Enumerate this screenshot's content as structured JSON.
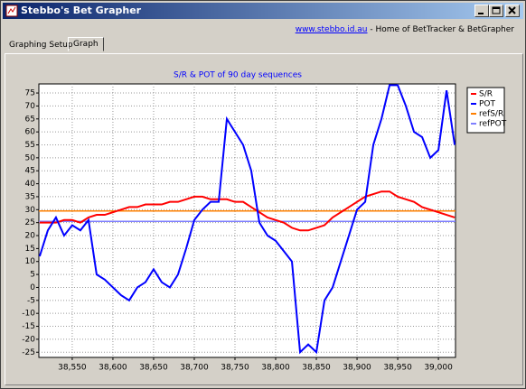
{
  "window": {
    "title": "Stebbo's Bet Grapher",
    "link": "www.stebbo.id.au",
    "link_suffix": " - Home of BetTracker & BetGrapher",
    "tabs": [
      "Graphing Setup",
      "Graph"
    ]
  },
  "chart_data": {
    "type": "line",
    "title": "S/R & POT of 90 day sequences",
    "x": [
      38510,
      38520,
      38530,
      38540,
      38550,
      38560,
      38570,
      38580,
      38590,
      38600,
      38610,
      38620,
      38630,
      38640,
      38650,
      38660,
      38670,
      38680,
      38690,
      38700,
      38710,
      38720,
      38730,
      38740,
      38750,
      38760,
      38770,
      38780,
      38790,
      38800,
      38810,
      38820,
      38830,
      38840,
      38850,
      38860,
      38870,
      38880,
      38890,
      38900,
      38910,
      38920,
      38930,
      38940,
      38950,
      38960,
      38970,
      38980,
      38990,
      39000,
      39010,
      39020
    ],
    "series": [
      {
        "name": "S/R",
        "color": "#ff0000",
        "values": [
          25,
          25,
          25,
          26,
          26,
          25,
          27,
          28,
          28,
          29,
          30,
          31,
          31,
          32,
          32,
          32,
          33,
          33,
          34,
          35,
          35,
          34,
          34,
          34,
          33,
          33,
          31,
          29,
          27,
          26,
          25,
          23,
          22,
          22,
          23,
          24,
          27,
          29,
          31,
          33,
          35,
          36,
          37,
          37,
          35,
          34,
          33,
          31,
          30,
          29,
          28,
          27
        ]
      },
      {
        "name": "POT",
        "color": "#0000ff",
        "values": [
          12,
          22,
          27,
          20,
          24,
          22,
          26,
          5,
          3,
          0,
          -3,
          -5,
          0,
          2,
          7,
          2,
          0,
          5,
          15,
          26,
          30,
          33,
          33,
          65,
          60,
          55,
          45,
          25,
          20,
          18,
          14,
          10,
          -25,
          -22,
          -25,
          -5,
          0,
          10,
          20,
          30,
          33,
          55,
          65,
          78,
          78,
          70,
          60,
          58,
          50,
          53,
          76,
          55
        ]
      }
    ],
    "reference_lines": [
      {
        "name": "refS/R",
        "color": "#ff8000",
        "value": 29.5
      },
      {
        "name": "refPOT",
        "color": "#8080ff",
        "value": 25.5
      }
    ],
    "xlim": [
      38509,
      39021
    ],
    "ylim": [
      -27,
      78.5
    ],
    "xticks": [
      {
        "value": 38550,
        "label": "38,550"
      },
      {
        "value": 38600,
        "label": "38,600"
      },
      {
        "value": 38650,
        "label": "38,650"
      },
      {
        "value": 38700,
        "label": "38,700"
      },
      {
        "value": 38750,
        "label": "38,750"
      },
      {
        "value": 38800,
        "label": "38,800"
      },
      {
        "value": 38850,
        "label": "38,850"
      },
      {
        "value": 38900,
        "label": "38,900"
      },
      {
        "value": 38950,
        "label": "38,950"
      },
      {
        "value": 39000,
        "label": "39,000"
      }
    ],
    "yticks": [
      -25,
      -20,
      -15,
      -10,
      -5,
      0,
      5,
      10,
      15,
      20,
      25,
      30,
      35,
      40,
      45,
      50,
      55,
      60,
      65,
      70,
      75
    ],
    "grid": true,
    "legend": "right"
  }
}
